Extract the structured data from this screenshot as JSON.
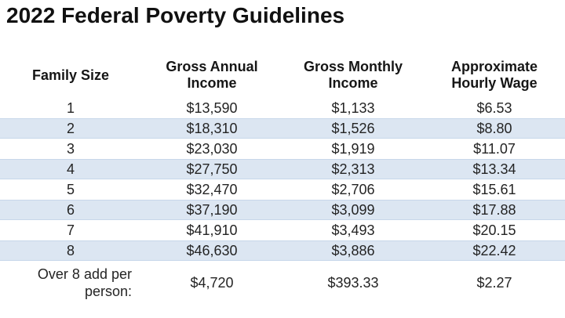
{
  "page": {
    "title": "2022 Federal Poverty Guidelines"
  },
  "colors": {
    "row_shade": "#dce6f2",
    "row_shade_border": "#c7d7ea",
    "text": "#242424",
    "title_text": "#111111",
    "background": "#ffffff"
  },
  "table": {
    "headers": [
      "Family Size",
      "Gross Annual Income",
      "Gross Monthly Income",
      "Approximate Hourly Wage"
    ],
    "rows": [
      {
        "family_size": "1",
        "annual": "$13,590",
        "monthly": "$1,133",
        "hourly": "$6.53"
      },
      {
        "family_size": "2",
        "annual": "$18,310",
        "monthly": "$1,526",
        "hourly": "$8.80"
      },
      {
        "family_size": "3",
        "annual": "$23,030",
        "monthly": "$1,919",
        "hourly": "$11.07"
      },
      {
        "family_size": "4",
        "annual": "$27,750",
        "monthly": "$2,313",
        "hourly": "$13.34"
      },
      {
        "family_size": "5",
        "annual": "$32,470",
        "monthly": "$2,706",
        "hourly": "$15.61"
      },
      {
        "family_size": "6",
        "annual": "$37,190",
        "monthly": "$3,099",
        "hourly": "$17.88"
      },
      {
        "family_size": "7",
        "annual": "$41,910",
        "monthly": "$3,493",
        "hourly": "$20.15"
      },
      {
        "family_size": "8",
        "annual": "$46,630",
        "monthly": "$3,886",
        "hourly": "$22.42"
      }
    ],
    "footer_row": {
      "label": "Over 8 add per person:",
      "annual": "$4,720",
      "monthly": "$393.33",
      "hourly": "$2.27"
    }
  }
}
